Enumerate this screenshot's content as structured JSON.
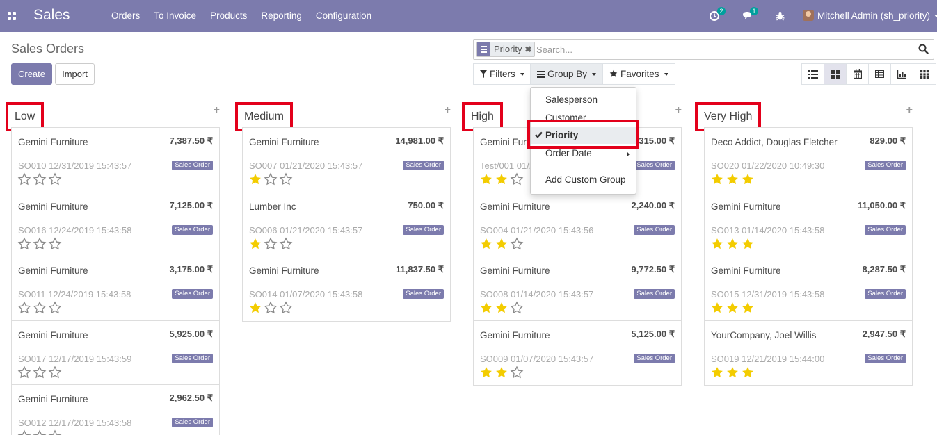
{
  "navbar": {
    "app_name": "Sales",
    "menu": [
      "Orders",
      "To Invoice",
      "Products",
      "Reporting",
      "Configuration"
    ],
    "activity_count": "2",
    "messages_count": "1",
    "user_name": "Mitchell Admin (sh_priority)"
  },
  "control_panel": {
    "title": "Sales Orders",
    "create_label": "Create",
    "import_label": "Import",
    "search": {
      "facet_label": "Priority",
      "placeholder": "Search..."
    },
    "filters_label": "Filters",
    "group_by_label": "Group By",
    "favorites_label": "Favorites"
  },
  "group_by_menu": {
    "items": [
      "Salesperson",
      "Customer",
      "Priority",
      "Order Date"
    ],
    "selected": "Priority",
    "custom_group_label": "Add Custom Group"
  },
  "colors": {
    "brand": "#7c7bad",
    "star_filled": "#f3cc00",
    "highlight": "#e3001b"
  },
  "columns": [
    {
      "title": "Low",
      "cards": [
        {
          "customer": "Gemini Furniture",
          "amount": "7,387.50 ₹",
          "ref": "SO010 12/31/2019 15:43:57",
          "badge": "Sales Order",
          "stars": 0
        },
        {
          "customer": "Gemini Furniture",
          "amount": "7,125.00 ₹",
          "ref": "SO016 12/24/2019 15:43:58",
          "badge": "Sales Order",
          "stars": 0
        },
        {
          "customer": "Gemini Furniture",
          "amount": "3,175.00 ₹",
          "ref": "SO011 12/24/2019 15:43:58",
          "badge": "Sales Order",
          "stars": 0
        },
        {
          "customer": "Gemini Furniture",
          "amount": "5,925.00 ₹",
          "ref": "SO017 12/17/2019 15:43:59",
          "badge": "Sales Order",
          "stars": 0
        },
        {
          "customer": "Gemini Furniture",
          "amount": "2,962.50 ₹",
          "ref": "SO012 12/17/2019 15:43:58",
          "badge": "Sales Order",
          "stars": 0
        }
      ]
    },
    {
      "title": "Medium",
      "cards": [
        {
          "customer": "Gemini Furniture",
          "amount": "14,981.00 ₹",
          "ref": "SO007 01/21/2020 15:43:57",
          "badge": "Sales Order",
          "stars": 1
        },
        {
          "customer": "Lumber Inc",
          "amount": "750.00 ₹",
          "ref": "SO006 01/21/2020 15:43:57",
          "badge": "Sales Order",
          "stars": 1
        },
        {
          "customer": "Gemini Furniture",
          "amount": "11,837.50 ₹",
          "ref": "SO014 01/07/2020 15:43:58",
          "badge": "Sales Order",
          "stars": 1
        }
      ]
    },
    {
      "title": "High",
      "cards": [
        {
          "customer": "Gemini Furn",
          "amount": "315.00 ₹",
          "ref": "Test/001 01/2",
          "badge": "Sales Order",
          "stars": 2
        },
        {
          "customer": "Gemini Furniture",
          "amount": "2,240.00 ₹",
          "ref": "SO004 01/21/2020 15:43:56",
          "badge": "Sales Order",
          "stars": 2
        },
        {
          "customer": "Gemini Furniture",
          "amount": "9,772.50 ₹",
          "ref": "SO008 01/14/2020 15:43:57",
          "badge": "Sales Order",
          "stars": 2
        },
        {
          "customer": "Gemini Furniture",
          "amount": "5,125.00 ₹",
          "ref": "SO009 01/07/2020 15:43:57",
          "badge": "Sales Order",
          "stars": 2
        }
      ]
    },
    {
      "title": "Very High",
      "cards": [
        {
          "customer": "Deco Addict, Douglas Fletcher",
          "amount": "829.00 ₹",
          "ref": "SO020 01/22/2020 10:49:30",
          "badge": "Sales Order",
          "stars": 3
        },
        {
          "customer": "Gemini Furniture",
          "amount": "11,050.00 ₹",
          "ref": "SO013 01/14/2020 15:43:58",
          "badge": "Sales Order",
          "stars": 3
        },
        {
          "customer": "Gemini Furniture",
          "amount": "8,287.50 ₹",
          "ref": "SO015 12/31/2019 15:43:58",
          "badge": "Sales Order",
          "stars": 3
        },
        {
          "customer": "YourCompany, Joel Willis",
          "amount": "2,947.50 ₹",
          "ref": "SO019 12/21/2019 15:44:00",
          "badge": "Sales Order",
          "stars": 3
        }
      ]
    }
  ]
}
